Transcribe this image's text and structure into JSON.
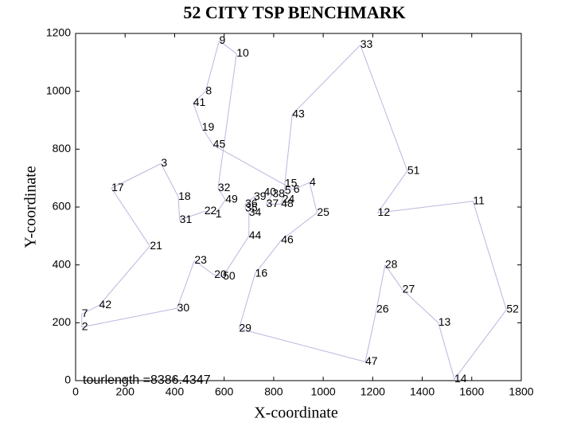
{
  "chart_data": {
    "type": "tour",
    "title": "52 CITY TSP BENCHMARK",
    "xlabel": "X-coordinate",
    "ylabel": "Y-coordinate",
    "annotation": "tourlength =8386.4347",
    "labels": [
      1,
      2,
      3,
      4,
      5,
      6,
      7,
      8,
      9,
      10,
      11,
      12,
      13,
      14,
      15,
      16,
      17,
      18,
      19,
      20,
      21,
      22,
      23,
      24,
      25,
      26,
      27,
      28,
      29,
      30,
      31,
      32,
      33,
      34,
      35,
      36,
      37,
      38,
      39,
      40,
      41,
      42,
      43,
      44,
      45,
      46,
      47,
      48,
      49,
      50,
      51,
      52
    ],
    "x": [
      565,
      25,
      345,
      945,
      845,
      880,
      25,
      525,
      580,
      650,
      1605,
      1220,
      1465,
      1530,
      845,
      725,
      145,
      415,
      510,
      560,
      300,
      520,
      480,
      835,
      975,
      1215,
      1320,
      1250,
      660,
      410,
      420,
      575,
      1150,
      700,
      685,
      685,
      770,
      795,
      720,
      760,
      475,
      95,
      875,
      700,
      555,
      830,
      1170,
      830,
      605,
      595,
      1340,
      1740
    ],
    "y": [
      575,
      185,
      750,
      685,
      655,
      660,
      230,
      1000,
      1175,
      1130,
      620,
      580,
      200,
      5,
      680,
      370,
      665,
      635,
      875,
      365,
      465,
      585,
      415,
      625,
      580,
      245,
      315,
      400,
      180,
      250,
      555,
      665,
      1160,
      580,
      595,
      610,
      610,
      645,
      635,
      650,
      960,
      260,
      920,
      500,
      815,
      485,
      65,
      610,
      625,
      360,
      725,
      245
    ],
    "tour": [
      1,
      22,
      31,
      18,
      3,
      17,
      21,
      42,
      7,
      2,
      30,
      23,
      20,
      50,
      44,
      34,
      35,
      36,
      39,
      40,
      38,
      37,
      48,
      24,
      5,
      15,
      43,
      33,
      51,
      12,
      11,
      52,
      14,
      13,
      27,
      28,
      26,
      47,
      29,
      16,
      46,
      25,
      4,
      6,
      45,
      19,
      41,
      8,
      9,
      10,
      32,
      49
    ],
    "line_color": "#b8b8e0",
    "annotation_color": "#e8141c",
    "xlim": [
      0,
      1800
    ],
    "ylim": [
      0,
      1200
    ],
    "xticks": [
      0,
      200,
      400,
      600,
      800,
      1000,
      1200,
      1400,
      1600,
      1800
    ],
    "yticks": [
      0,
      200,
      400,
      600,
      800,
      1000,
      1200
    ]
  }
}
